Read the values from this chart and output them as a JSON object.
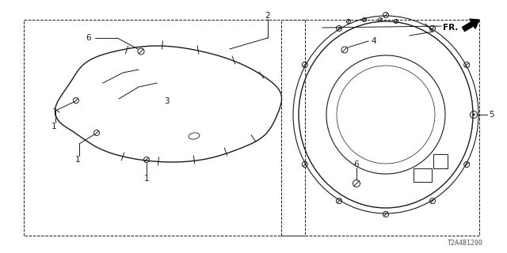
{
  "bg_color": "#ffffff",
  "line_color": "#1a1a1a",
  "diagram_code": "T2A4B1200",
  "figsize": [
    6.4,
    3.2
  ],
  "dpi": 100,
  "lens_color": "#dddddd",
  "gauge_bg": "#e8e8e8"
}
